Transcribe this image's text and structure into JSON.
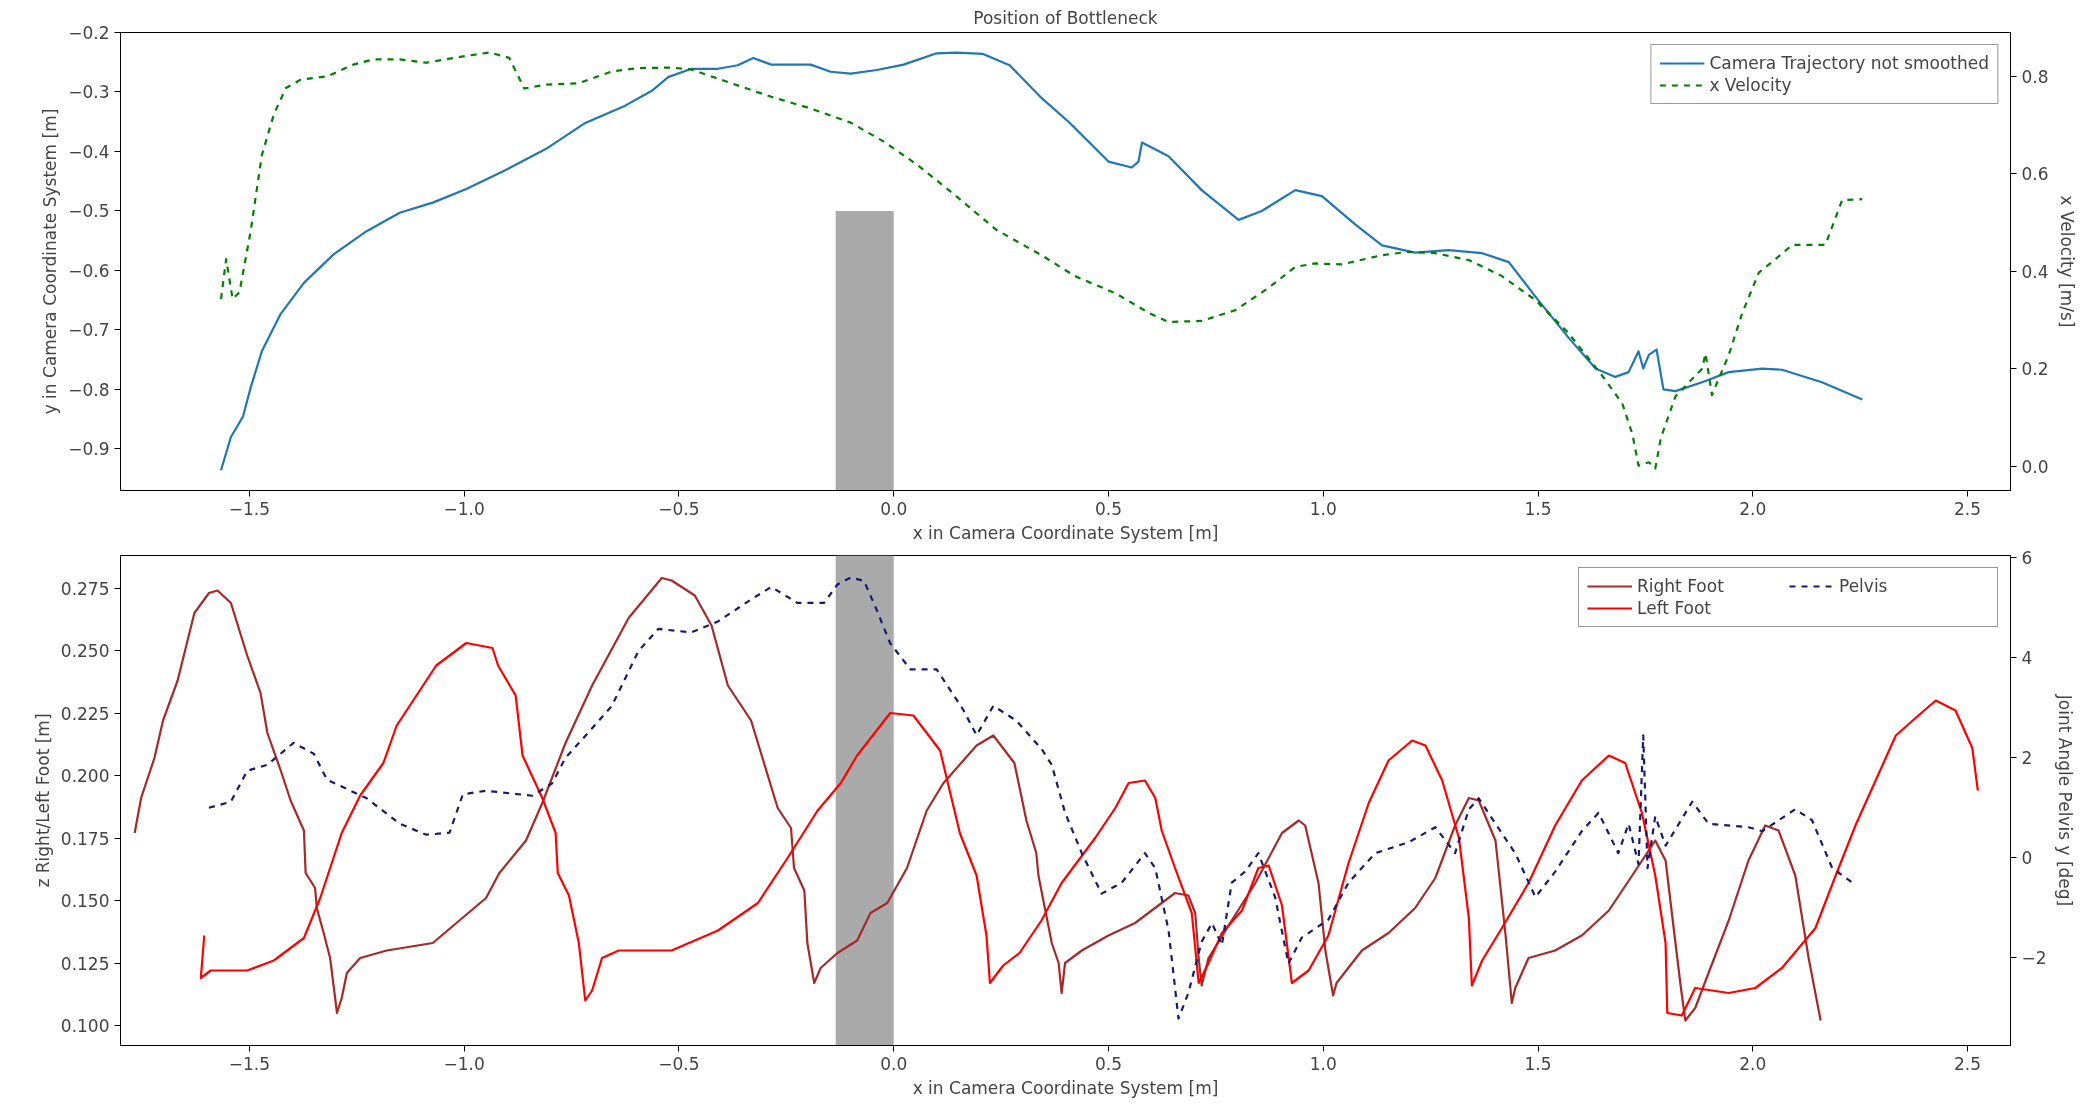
{
  "chart_data": [
    {
      "type": "line",
      "title": "Position of Bottleneck",
      "xlabel": "x in Camera Coordinate System [m]",
      "ylabel": "y in Camera Coordinate System [m]",
      "y2label": "x Velocity [m/s]",
      "xlim": [
        -1.8,
        2.6
      ],
      "ylim": [
        -0.97,
        -0.2
      ],
      "y2lim": [
        -0.05,
        0.89
      ],
      "xticks": [
        {
          "value": -1.5,
          "label": "−1.5"
        },
        {
          "value": -1.0,
          "label": "−1.0"
        },
        {
          "value": -0.5,
          "label": "−0.5"
        },
        {
          "value": 0,
          "label": "0.0"
        },
        0.5,
        {
          "value": 1,
          "label": "1.0"
        },
        1.5,
        {
          "value": 2,
          "label": "2.0"
        },
        2.5
      ],
      "yticks": [
        {
          "value": -0.9,
          "label": "−0.9"
        },
        {
          "value": -0.8,
          "label": "−0.8"
        },
        {
          "value": -0.7,
          "label": "−0.7"
        },
        {
          "value": -0.6,
          "label": "−0.6"
        },
        {
          "value": -0.5,
          "label": "−0.5"
        },
        {
          "value": -0.4,
          "label": "−0.4"
        },
        {
          "value": -0.3,
          "label": "−0.3"
        },
        {
          "value": -0.2,
          "label": "−0.2"
        }
      ],
      "y2ticks": [
        {
          "value": 0,
          "label": "0.0"
        },
        0.2,
        0.4,
        0.6,
        0.8
      ],
      "grid": false,
      "legend": "top right",
      "series": [
        {
          "type": "bar",
          "color": "#aaaaaa",
          "x": [
            -0.0675
          ],
          "base": [
            -0.97
          ],
          "values": [
            0.47
          ]
        },
        {
          "name": "Camera Trajectory not smoothed",
          "color": "#1f77b4",
          "line_style": "solid",
          "x": [
            -1.566,
            -1.543,
            -1.515,
            -1.497,
            -1.471,
            -1.427,
            -1.373,
            -1.304,
            -1.227,
            -1.15,
            -1.073,
            -0.995,
            -0.903,
            -0.81,
            -0.718,
            -0.625,
            -0.563,
            -0.525,
            -0.471,
            -0.409,
            -0.363,
            -0.327,
            -0.285,
            -0.193,
            -0.147,
            -0.1,
            -0.039,
            0.023,
            0.1,
            0.147,
            0.208,
            0.27,
            0.344,
            0.407,
            0.5,
            0.554,
            0.57,
            0.578,
            0.64,
            0.717,
            0.803,
            0.857,
            0.935,
            0.997,
            1.075,
            1.137,
            1.214,
            1.292,
            1.37,
            1.432,
            1.494,
            1.571,
            1.634,
            1.68,
            1.711,
            1.734,
            1.745,
            1.758,
            1.776,
            1.792,
            1.82,
            1.882,
            1.944,
            2.022,
            2.068,
            2.161,
            2.255
          ],
          "values": [
            -0.936,
            -0.88,
            -0.846,
            -0.797,
            -0.736,
            -0.673,
            -0.621,
            -0.573,
            -0.534,
            -0.503,
            -0.486,
            -0.463,
            -0.431,
            -0.396,
            -0.352,
            -0.323,
            -0.298,
            -0.275,
            -0.261,
            -0.261,
            -0.255,
            -0.243,
            -0.254,
            -0.254,
            -0.266,
            -0.269,
            -0.263,
            -0.254,
            -0.235,
            -0.234,
            -0.236,
            -0.255,
            -0.31,
            -0.35,
            -0.417,
            -0.427,
            -0.417,
            -0.385,
            -0.408,
            -0.465,
            -0.515,
            -0.5,
            -0.465,
            -0.475,
            -0.523,
            -0.558,
            -0.57,
            -0.566,
            -0.571,
            -0.586,
            -0.644,
            -0.713,
            -0.765,
            -0.779,
            -0.771,
            -0.736,
            -0.765,
            -0.742,
            -0.733,
            -0.8,
            -0.803,
            -0.788,
            -0.771,
            -0.765,
            -0.767,
            -0.788,
            -0.817
          ]
        },
        {
          "name": "x Velocity",
          "color": "#008000",
          "line_style": "dashed",
          "axis": "y2",
          "x": [
            -1.566,
            -1.554,
            -1.539,
            -1.523,
            -1.497,
            -1.471,
            -1.443,
            -1.415,
            -1.381,
            -1.319,
            -1.258,
            -1.211,
            -1.15,
            -1.088,
            -0.995,
            -0.941,
            -0.895,
            -0.86,
            -0.81,
            -0.733,
            -0.656,
            -0.594,
            -0.517,
            -0.471,
            -0.378,
            -0.285,
            -0.193,
            -0.1,
            -0.023,
            0.054,
            0.147,
            0.239,
            0.344,
            0.422,
            0.516,
            0.593,
            0.64,
            0.717,
            0.795,
            0.873,
            0.935,
            0.981,
            1.043,
            1.137,
            1.199,
            1.261,
            1.339,
            1.416,
            1.494,
            1.571,
            1.649,
            1.696,
            1.72,
            1.734,
            1.758,
            1.773,
            1.786,
            1.82,
            1.882,
            1.89,
            1.905,
            1.944,
            1.975,
            2.014,
            2.053,
            2.092,
            2.169,
            2.208,
            2.255
          ],
          "values": [
            0.343,
            0.425,
            0.343,
            0.357,
            0.482,
            0.638,
            0.722,
            0.776,
            0.793,
            0.8,
            0.824,
            0.835,
            0.835,
            0.828,
            0.842,
            0.849,
            0.838,
            0.775,
            0.783,
            0.786,
            0.81,
            0.817,
            0.818,
            0.814,
            0.786,
            0.758,
            0.734,
            0.705,
            0.666,
            0.619,
            0.553,
            0.485,
            0.433,
            0.39,
            0.355,
            0.315,
            0.296,
            0.298,
            0.32,
            0.366,
            0.409,
            0.416,
            0.414,
            0.433,
            0.44,
            0.437,
            0.423,
            0.39,
            0.341,
            0.273,
            0.186,
            0.129,
            0.065,
            0.001,
            0.008,
            -0.005,
            0.058,
            0.143,
            0.2,
            0.231,
            0.146,
            0.228,
            0.313,
            0.397,
            0.425,
            0.454,
            0.454,
            0.546,
            0.548
          ]
        }
      ]
    },
    {
      "type": "line",
      "xlabel": "x in Camera Coordinate System [m]",
      "ylabel": "z Right/Left Foot [m]",
      "y2label": "Joint Angle Pelvis y [deg]",
      "xlim": [
        -1.8,
        2.6
      ],
      "ylim": [
        0.092,
        0.288
      ],
      "y2lim": [
        -3.77,
        6.04
      ],
      "xticks": [
        {
          "value": -1.5,
          "label": "−1.5"
        },
        {
          "value": -1.0,
          "label": "−1.0"
        },
        {
          "value": -0.5,
          "label": "−0.5"
        },
        {
          "value": 0,
          "label": "0.0"
        },
        0.5,
        {
          "value": 1,
          "label": "1.0"
        },
        1.5,
        {
          "value": 2,
          "label": "2.0"
        },
        2.5
      ],
      "yticks": [
        {
          "value": 0.1,
          "label": "0.100"
        },
        {
          "value": 0.125,
          "label": "0.125"
        },
        {
          "value": 0.15,
          "label": "0.150"
        },
        {
          "value": 0.175,
          "label": "0.175"
        },
        {
          "value": 0.2,
          "label": "0.200"
        },
        {
          "value": 0.225,
          "label": "0.225"
        },
        {
          "value": 0.25,
          "label": "0.250"
        },
        {
          "value": 0.275,
          "label": "0.275"
        }
      ],
      "y2ticks": [
        {
          "value": -2,
          "label": "−2"
        },
        0,
        2,
        4,
        6
      ],
      "grid": false,
      "legend": "top right",
      "bands": [
        {
          "axis": "x",
          "from": -0.135,
          "to": 0,
          "color": "#aaaaaa"
        }
      ],
      "series": [
        {
          "name": "Right Foot",
          "color": "#a52a2a",
          "line_style": "solid",
          "x": [
            -1.767,
            -1.752,
            -1.721,
            -1.701,
            -1.667,
            -1.628,
            -1.594,
            -1.574,
            -1.543,
            -1.505,
            -1.474,
            -1.458,
            -1.427,
            -1.404,
            -1.373,
            -1.369,
            -1.347,
            -1.343,
            -1.327,
            -1.312,
            -1.304,
            -1.296,
            -1.285,
            -1.273,
            -1.242,
            -1.18,
            -1.073,
            -1.011,
            -0.949,
            -0.918,
            -0.856,
            -0.818,
            -0.764,
            -0.702,
            -0.617,
            -0.54,
            -0.517,
            -0.463,
            -0.424,
            -0.386,
            -0.332,
            -0.27,
            -0.239,
            -0.232,
            -0.208,
            -0.201,
            -0.185,
            -0.17,
            -0.131,
            -0.085,
            -0.054,
            -0.015,
            0.031,
            0.077,
            0.116,
            0.193,
            0.232,
            0.281,
            0.309,
            0.332,
            0.337,
            0.368,
            0.384,
            0.391,
            0.399,
            0.438,
            0.5,
            0.562,
            0.624,
            0.655,
            0.686,
            0.702,
            0.71,
            0.717,
            0.733,
            0.787,
            0.842,
            0.904,
            0.943,
            0.958,
            0.989,
            1.005,
            1.023,
            1.031,
            1.09,
            1.152,
            1.214,
            1.261,
            1.307,
            1.339,
            1.362,
            1.401,
            1.424,
            1.439,
            1.447,
            1.478,
            1.54,
            1.602,
            1.665,
            1.727,
            1.773,
            1.797,
            1.82,
            1.832,
            1.843,
            1.866,
            1.897,
            1.944,
            1.99,
            2.029,
            2.06,
            2.099,
            2.13,
            2.158
          ],
          "values": [
            0.177,
            0.191,
            0.207,
            0.222,
            0.238,
            0.265,
            0.273,
            0.274,
            0.269,
            0.248,
            0.233,
            0.217,
            0.202,
            0.19,
            0.178,
            0.161,
            0.155,
            0.147,
            0.137,
            0.127,
            0.116,
            0.105,
            0.111,
            0.121,
            0.127,
            0.13,
            0.133,
            0.142,
            0.151,
            0.161,
            0.174,
            0.189,
            0.213,
            0.236,
            0.263,
            0.279,
            0.278,
            0.272,
            0.26,
            0.236,
            0.222,
            0.187,
            0.179,
            0.163,
            0.154,
            0.133,
            0.117,
            0.123,
            0.129,
            0.134,
            0.145,
            0.149,
            0.163,
            0.186,
            0.197,
            0.212,
            0.216,
            0.205,
            0.182,
            0.169,
            0.16,
            0.133,
            0.125,
            0.113,
            0.125,
            0.13,
            0.136,
            0.141,
            0.149,
            0.153,
            0.152,
            0.145,
            0.127,
            0.116,
            0.127,
            0.142,
            0.157,
            0.177,
            0.182,
            0.18,
            0.157,
            0.13,
            0.112,
            0.117,
            0.13,
            0.137,
            0.147,
            0.159,
            0.18,
            0.191,
            0.19,
            0.174,
            0.137,
            0.109,
            0.115,
            0.127,
            0.13,
            0.136,
            0.146,
            0.162,
            0.174,
            0.166,
            0.133,
            0.116,
            0.102,
            0.107,
            0.121,
            0.142,
            0.166,
            0.18,
            0.178,
            0.16,
            0.127,
            0.102
          ]
        },
        {
          "name": "Left Foot",
          "color": "#ff0000",
          "line_style": "solid",
          "x": [
            -1.605,
            -1.613,
            -1.59,
            -1.505,
            -1.443,
            -1.373,
            -1.335,
            -1.285,
            -1.242,
            -1.188,
            -1.157,
            -1.111,
            -1.065,
            -0.995,
            -0.934,
            -0.921,
            -0.88,
            -0.864,
            -0.818,
            -0.787,
            -0.782,
            -0.756,
            -0.733,
            -0.718,
            -0.702,
            -0.679,
            -0.64,
            -0.517,
            -0.409,
            -0.316,
            -0.247,
            -0.177,
            -0.123,
            -0.085,
            -0.008,
            0.046,
            0.108,
            0.154,
            0.193,
            0.216,
            0.224,
            0.255,
            0.293,
            0.344,
            0.391,
            0.469,
            0.516,
            0.547,
            0.585,
            0.609,
            0.624,
            0.655,
            0.694,
            0.71,
            0.733,
            0.764,
            0.811,
            0.849,
            0.873,
            0.904,
            0.927,
            0.966,
            1.012,
            1.059,
            1.106,
            1.152,
            1.207,
            1.238,
            1.277,
            1.316,
            1.339,
            1.346,
            1.37,
            1.416,
            1.478,
            1.54,
            1.602,
            1.665,
            1.703,
            1.742,
            1.773,
            1.797,
            1.801,
            1.835,
            1.866,
            1.944,
            2.006,
            2.068,
            2.146,
            2.193,
            2.239,
            2.286,
            2.333,
            2.379,
            2.426,
            2.472,
            2.511,
            2.524
          ],
          "values": [
            0.136,
            0.119,
            0.122,
            0.122,
            0.126,
            0.135,
            0.151,
            0.177,
            0.192,
            0.205,
            0.22,
            0.232,
            0.244,
            0.253,
            0.251,
            0.244,
            0.232,
            0.208,
            0.191,
            0.177,
            0.161,
            0.152,
            0.133,
            0.11,
            0.114,
            0.127,
            0.13,
            0.13,
            0.138,
            0.149,
            0.167,
            0.186,
            0.197,
            0.208,
            0.225,
            0.224,
            0.21,
            0.177,
            0.16,
            0.136,
            0.117,
            0.124,
            0.129,
            0.142,
            0.157,
            0.175,
            0.187,
            0.197,
            0.198,
            0.191,
            0.178,
            0.163,
            0.145,
            0.117,
            0.125,
            0.137,
            0.146,
            0.163,
            0.164,
            0.148,
            0.117,
            0.122,
            0.136,
            0.165,
            0.189,
            0.206,
            0.214,
            0.212,
            0.198,
            0.175,
            0.143,
            0.116,
            0.126,
            0.139,
            0.157,
            0.18,
            0.198,
            0.208,
            0.205,
            0.185,
            0.16,
            0.133,
            0.105,
            0.104,
            0.115,
            0.113,
            0.115,
            0.123,
            0.139,
            0.16,
            0.18,
            0.198,
            0.216,
            0.223,
            0.23,
            0.226,
            0.211,
            0.194
          ]
        },
        {
          "name": "Pelvis",
          "color": "#191970",
          "line_style": "dashed",
          "axis": "y2",
          "x": [
            -1.594,
            -1.543,
            -1.505,
            -1.458,
            -1.397,
            -1.35,
            -1.319,
            -1.227,
            -1.15,
            -1.088,
            -1.034,
            -1.003,
            -0.949,
            -0.841,
            -0.795,
            -0.764,
            -0.702,
            -0.656,
            -0.594,
            -0.548,
            -0.471,
            -0.409,
            -0.332,
            -0.285,
            -0.224,
            -0.162,
            -0.131,
            -0.1,
            -0.069,
            -0.039,
            -0.008,
            0.039,
            0.1,
            0.162,
            0.193,
            0.232,
            0.286,
            0.344,
            0.368,
            0.399,
            0.438,
            0.484,
            0.531,
            0.585,
            0.609,
            0.64,
            0.663,
            0.686,
            0.717,
            0.741,
            0.764,
            0.787,
            0.818,
            0.849,
            0.888,
            0.919,
            0.95,
            1.012,
            1.059,
            1.121,
            1.199,
            1.261,
            1.307,
            1.339,
            1.362,
            1.401,
            1.447,
            1.494,
            1.54,
            1.602,
            1.641,
            1.687,
            1.711,
            1.734,
            1.745,
            1.755,
            1.773,
            1.797,
            1.859,
            1.897,
            1.99,
            2.022,
            2.099,
            2.138,
            2.185,
            2.232
          ],
          "values": [
            0.99,
            1.11,
            1.73,
            1.85,
            2.29,
            2.07,
            1.55,
            1.18,
            0.67,
            0.45,
            0.49,
            1.26,
            1.33,
            1.23,
            1.48,
            1.99,
            2.58,
            3.03,
            4.13,
            4.57,
            4.5,
            4.72,
            5.16,
            5.41,
            5.09,
            5.09,
            5.46,
            5.6,
            5.53,
            4.94,
            4.28,
            3.76,
            3.76,
            2.95,
            2.44,
            3.03,
            2.73,
            2.17,
            1.85,
            0.89,
            0.08,
            -0.73,
            -0.51,
            0.08,
            -0.22,
            -1.47,
            -3.23,
            -2.72,
            -1.69,
            -1.32,
            -1.76,
            -0.51,
            -0.29,
            0.08,
            -0.8,
            -2.13,
            -1.61,
            -1.25,
            -0.51,
            0.08,
            0.3,
            0.6,
            0.08,
            0.96,
            1.18,
            0.67,
            0.08,
            -0.8,
            -0.29,
            0.52,
            0.89,
            0.08,
            0.67,
            -0.14,
            2.44,
            -0.22,
            0.82,
            0.23,
            1.11,
            0.67,
            0.6,
            0.52,
            0.96,
            0.74,
            -0.22,
            -0.51
          ]
        }
      ]
    }
  ]
}
